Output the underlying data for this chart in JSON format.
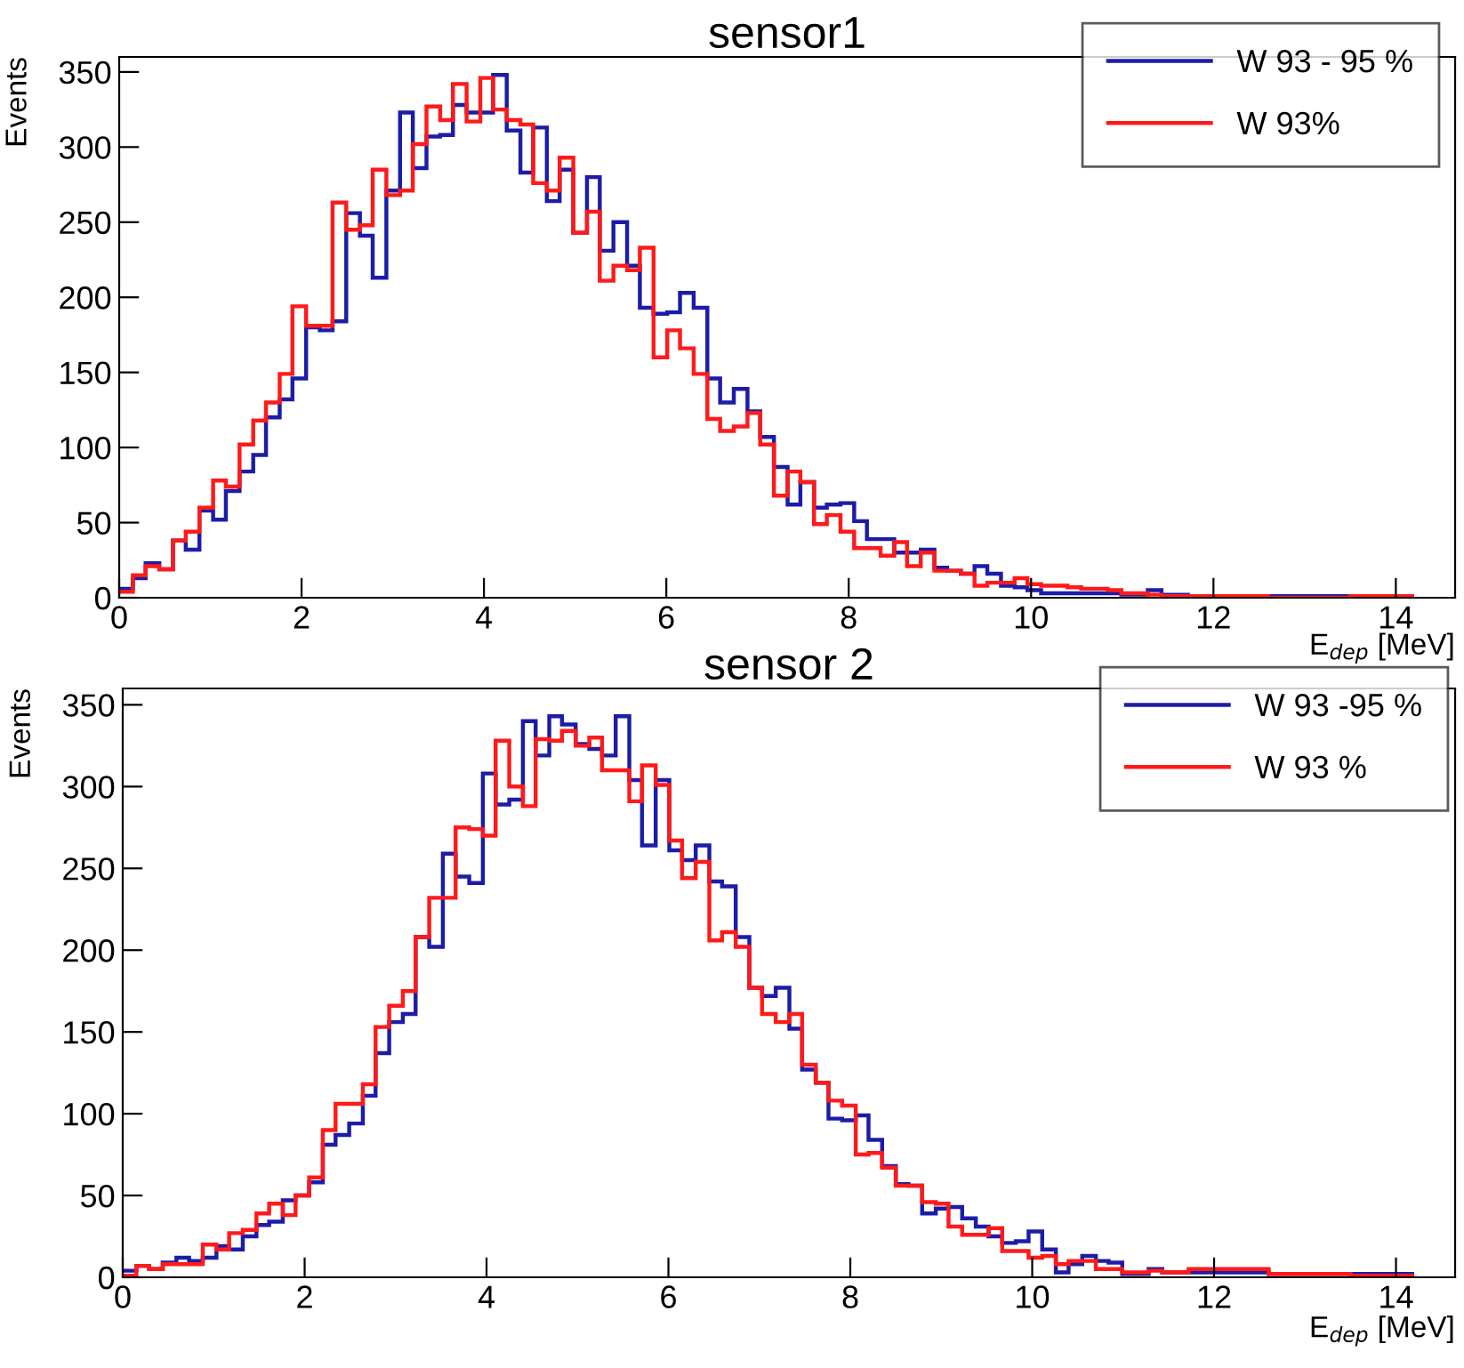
{
  "chart_data": [
    {
      "type": "histogram",
      "title": "sensor1",
      "xlabel": "E$_{dep}$ [MeV]",
      "ylabel": "Events",
      "bins": [
        0,
        0.15,
        0.29,
        0.44,
        0.59,
        0.73,
        0.88,
        1.03,
        1.17,
        1.32,
        1.47,
        1.61,
        1.76,
        1.9,
        2.05,
        2.2,
        2.34,
        2.49,
        2.64,
        2.78,
        2.93,
        3.08,
        3.22,
        3.37,
        3.52,
        3.66,
        3.81,
        3.96,
        4.1,
        4.25,
        4.4,
        4.54,
        4.69,
        4.83,
        4.98,
        5.13,
        5.27,
        5.42,
        5.57,
        5.71,
        5.86,
        6.01,
        6.15,
        6.3,
        6.45,
        6.59,
        6.74,
        6.89,
        7.03,
        7.18,
        7.33,
        7.47,
        7.62,
        7.76,
        7.91,
        8.06,
        8.2,
        8.35,
        8.5,
        8.64,
        8.79,
        8.94,
        9.08,
        9.23,
        9.38,
        9.52,
        9.67,
        9.82,
        9.96,
        10.11,
        10.26,
        10.4,
        10.55,
        10.7,
        10.84,
        10.99,
        11.14,
        11.28,
        11.43,
        11.57,
        11.72,
        12.6,
        13.5,
        14.2
      ],
      "series": [
        {
          "name": "W 93 - 95 %",
          "color": "#1c1ca8",
          "values": [
            6,
            13,
            23,
            19,
            38,
            32,
            58,
            52,
            71,
            84,
            95,
            120,
            132,
            146,
            180,
            178,
            184,
            256,
            241,
            213,
            271,
            323,
            286,
            307,
            308,
            328,
            323,
            323,
            348,
            311,
            283,
            313,
            264,
            285,
            243,
            280,
            231,
            250,
            221,
            193,
            189,
            190,
            203,
            193,
            146,
            130,
            139,
            124,
            107,
            87,
            62,
            77,
            60,
            62,
            63,
            51,
            39,
            39,
            30,
            30,
            32,
            20,
            18,
            16,
            21,
            16,
            8,
            7,
            5,
            3,
            3,
            3,
            3,
            3,
            3,
            2,
            2,
            5,
            2,
            2,
            1,
            1,
            1
          ]
        },
        {
          "name": "W 93%",
          "color": "#ff1a1a",
          "values": [
            4,
            15,
            21,
            19,
            38,
            44,
            60,
            78,
            74,
            102,
            118,
            130,
            149,
            194,
            181,
            181,
            263,
            245,
            248,
            285,
            268,
            271,
            302,
            327,
            318,
            342,
            317,
            346,
            325,
            318,
            315,
            276,
            271,
            293,
            243,
            257,
            211,
            221,
            218,
            233,
            160,
            178,
            166,
            149,
            119,
            111,
            114,
            123,
            102,
            68,
            84,
            77,
            49,
            55,
            44,
            33,
            33,
            28,
            37,
            21,
            30,
            18,
            18,
            16,
            8,
            10,
            10,
            13,
            9,
            8,
            8,
            7,
            6,
            6,
            5,
            3,
            3,
            2,
            1,
            1,
            1,
            0,
            1
          ]
        }
      ],
      "xlim": [
        0,
        14.65
      ],
      "xticks": [
        0,
        2,
        4,
        6,
        8,
        10,
        12,
        14
      ],
      "ylim": [
        0,
        360
      ],
      "yticks": [
        0,
        50,
        100,
        150,
        200,
        250,
        300,
        350
      ],
      "legend": "top right",
      "grid": false
    },
    {
      "type": "histogram",
      "title": "sensor 2",
      "xlabel": "E$_{dep}$ [MeV]",
      "ylabel": "Events",
      "bins": [
        0,
        0.15,
        0.29,
        0.44,
        0.59,
        0.73,
        0.88,
        1.03,
        1.17,
        1.32,
        1.47,
        1.61,
        1.76,
        1.9,
        2.05,
        2.2,
        2.34,
        2.49,
        2.64,
        2.78,
        2.93,
        3.08,
        3.22,
        3.37,
        3.52,
        3.66,
        3.81,
        3.96,
        4.1,
        4.25,
        4.4,
        4.54,
        4.69,
        4.83,
        4.98,
        5.13,
        5.27,
        5.42,
        5.57,
        5.71,
        5.86,
        6.01,
        6.15,
        6.3,
        6.45,
        6.59,
        6.74,
        6.89,
        7.03,
        7.18,
        7.33,
        7.47,
        7.62,
        7.76,
        7.91,
        8.06,
        8.2,
        8.35,
        8.5,
        8.64,
        8.79,
        8.94,
        9.08,
        9.23,
        9.38,
        9.52,
        9.67,
        9.82,
        9.96,
        10.11,
        10.26,
        10.4,
        10.55,
        10.7,
        10.84,
        10.99,
        11.14,
        11.28,
        11.43,
        11.57,
        11.72,
        12.6,
        13.5,
        14.2
      ],
      "series": [
        {
          "name": "W 93 -95 %",
          "color": "#1c1ca8",
          "values": [
            4,
            7,
            5,
            9,
            12,
            10,
            12,
            19,
            17,
            25,
            32,
            34,
            47,
            50,
            58,
            81,
            87,
            94,
            111,
            137,
            156,
            161,
            208,
            202,
            259,
            245,
            241,
            308,
            289,
            292,
            340,
            319,
            343,
            338,
            326,
            323,
            319,
            343,
            304,
            264,
            304,
            261,
            255,
            264,
            242,
            239,
            208,
            177,
            172,
            177,
            152,
            127,
            119,
            97,
            96,
            99,
            84,
            68,
            57,
            56,
            39,
            42,
            43,
            36,
            31,
            25,
            21,
            22,
            28,
            17,
            3,
            8,
            13,
            10,
            9,
            2,
            2,
            5,
            3,
            3,
            3,
            2,
            2
          ]
        },
        {
          "name": "W 93 %",
          "color": "#ff1a1a",
          "values": [
            1,
            7,
            5,
            8,
            8,
            8,
            20,
            17,
            27,
            29,
            39,
            45,
            38,
            50,
            61,
            90,
            106,
            106,
            118,
            153,
            166,
            175,
            208,
            232,
            232,
            275,
            274,
            270,
            328,
            300,
            288,
            329,
            328,
            334,
            325,
            330,
            310,
            310,
            291,
            313,
            301,
            267,
            244,
            254,
            206,
            211,
            202,
            177,
            161,
            156,
            161,
            130,
            119,
            108,
            105,
            75,
            76,
            67,
            56,
            56,
            46,
            45,
            31,
            26,
            26,
            30,
            16,
            16,
            12,
            13,
            8,
            10,
            10,
            5,
            5,
            3,
            3,
            4,
            3,
            3,
            5,
            2,
            1
          ]
        }
      ],
      "xlim": [
        0,
        14.65
      ],
      "xticks": [
        0,
        2,
        4,
        6,
        8,
        10,
        12,
        14
      ],
      "ylim": [
        0,
        360
      ],
      "yticks": [
        0,
        50,
        100,
        150,
        200,
        250,
        300,
        350
      ],
      "legend": "top right",
      "grid": false
    }
  ]
}
